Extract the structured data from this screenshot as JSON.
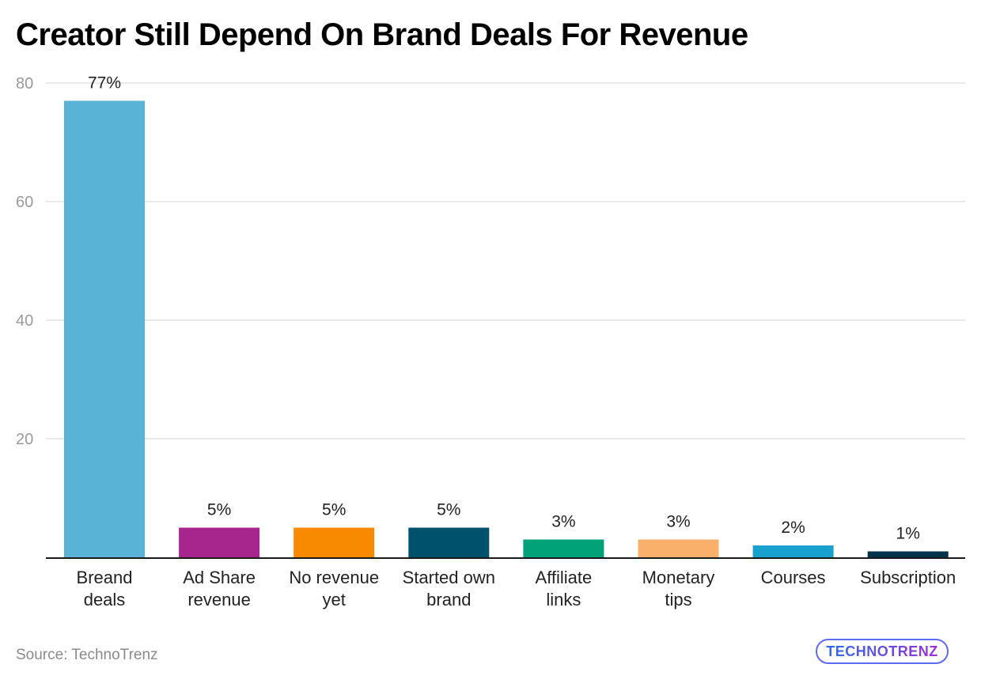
{
  "chart_data": {
    "type": "bar",
    "title": "Creator Still Depend On Brand Deals For Revenue",
    "xlabel": "",
    "ylabel": "",
    "ylim": [
      0,
      80
    ],
    "yticks": [
      20,
      40,
      60,
      80
    ],
    "grid": true,
    "categories": [
      [
        "Breand",
        "deals"
      ],
      [
        "Ad Share",
        "revenue"
      ],
      [
        "No revenue",
        "yet"
      ],
      [
        "Started own",
        "brand"
      ],
      [
        "Affiliate",
        "links"
      ],
      [
        "Monetary",
        "tips"
      ],
      [
        "Courses"
      ],
      [
        "Subscription"
      ]
    ],
    "values": [
      77,
      5,
      5,
      5,
      3,
      3,
      2,
      1
    ],
    "data_labels": [
      "77%",
      "5%",
      "5%",
      "5%",
      "3%",
      "3%",
      "2%",
      "1%"
    ],
    "colors": [
      "#58b3d7",
      "#a6268e",
      "#f78a00",
      "#00516b",
      "#02a278",
      "#f9b06b",
      "#18a0ce",
      "#00334b"
    ]
  },
  "footer": {
    "source": "Source: TechnoTrenz",
    "logo_text": "TECHNOTRENZ"
  }
}
